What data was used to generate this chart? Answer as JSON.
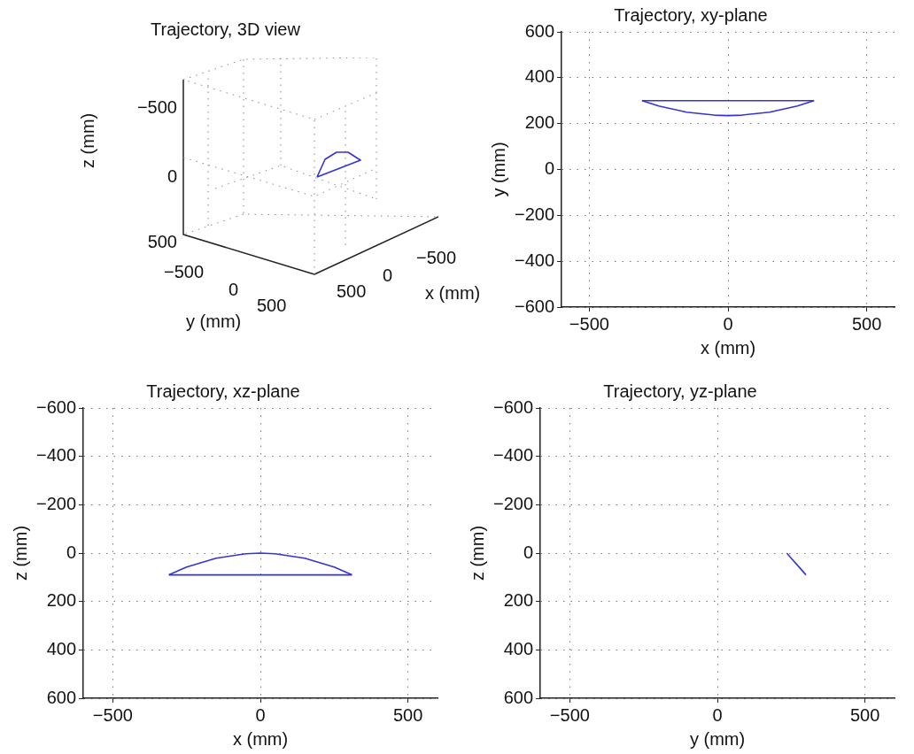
{
  "chart_data": [
    {
      "type": "other",
      "title": "Trajectory, 3D view",
      "xlabel": "x (mm)",
      "ylabel": "y (mm)",
      "annotations": [
        "z (mm)",
        "−500",
        "0",
        "500"
      ]
    },
    {
      "type": "line",
      "title": "Trajectory, xy-plane",
      "xlabel": "x (mm)",
      "ylabel": "y (mm)",
      "xlim": [
        -600,
        600
      ],
      "xticks": [
        -500,
        0,
        500
      ],
      "ylim": [
        -600,
        600
      ],
      "yticks": [
        -600,
        -400,
        -200,
        0,
        200,
        400,
        600
      ],
      "grid": true,
      "legend": false,
      "marker": "none",
      "line_style": "solid",
      "series": [
        {
          "color": "#3333dd",
          "x": [
            -310,
            -250,
            -150,
            -50,
            0,
            50,
            150,
            250,
            310
          ],
          "values": [
            300,
            277,
            250,
            237,
            235,
            237,
            250,
            277,
            300
          ]
        },
        {
          "color": "#3333dd",
          "x": [
            -310,
            310
          ],
          "values": [
            300,
            300
          ]
        }
      ]
    },
    {
      "type": "line",
      "title": "Trajectory, xz-plane",
      "xlabel": "x (mm)",
      "ylabel": "z (mm)",
      "xlim": [
        -600,
        600
      ],
      "xticks": [
        -500,
        0,
        500
      ],
      "ylim": [
        600,
        -600
      ],
      "yticks": [
        -600,
        -400,
        -200,
        0,
        200,
        400,
        600
      ],
      "grid": true,
      "legend": false,
      "marker": "none",
      "line_style": "solid",
      "series": [
        {
          "color": "#3333dd",
          "x": [
            -310,
            -250,
            -150,
            -50,
            0,
            50,
            150,
            250,
            310
          ],
          "values": [
            90,
            58,
            21,
            3,
            0,
            3,
            21,
            58,
            90
          ]
        },
        {
          "color": "#3333dd",
          "x": [
            -310,
            310
          ],
          "values": [
            90,
            90
          ]
        }
      ]
    },
    {
      "type": "line",
      "title": "Trajectory, yz-plane",
      "xlabel": "y (mm)",
      "ylabel": "z (mm)",
      "xlim": [
        -600,
        600
      ],
      "xticks": [
        -500,
        0,
        500
      ],
      "ylim": [
        600,
        -600
      ],
      "yticks": [
        -600,
        -400,
        -200,
        0,
        200,
        400,
        600
      ],
      "grid": true,
      "legend": false,
      "marker": "none",
      "line_style": "solid",
      "series": [
        {
          "color": "#3333dd",
          "x": [
            235,
            237,
            250,
            277,
            300
          ],
          "values": [
            0,
            3,
            21,
            58,
            90
          ]
        }
      ]
    }
  ]
}
